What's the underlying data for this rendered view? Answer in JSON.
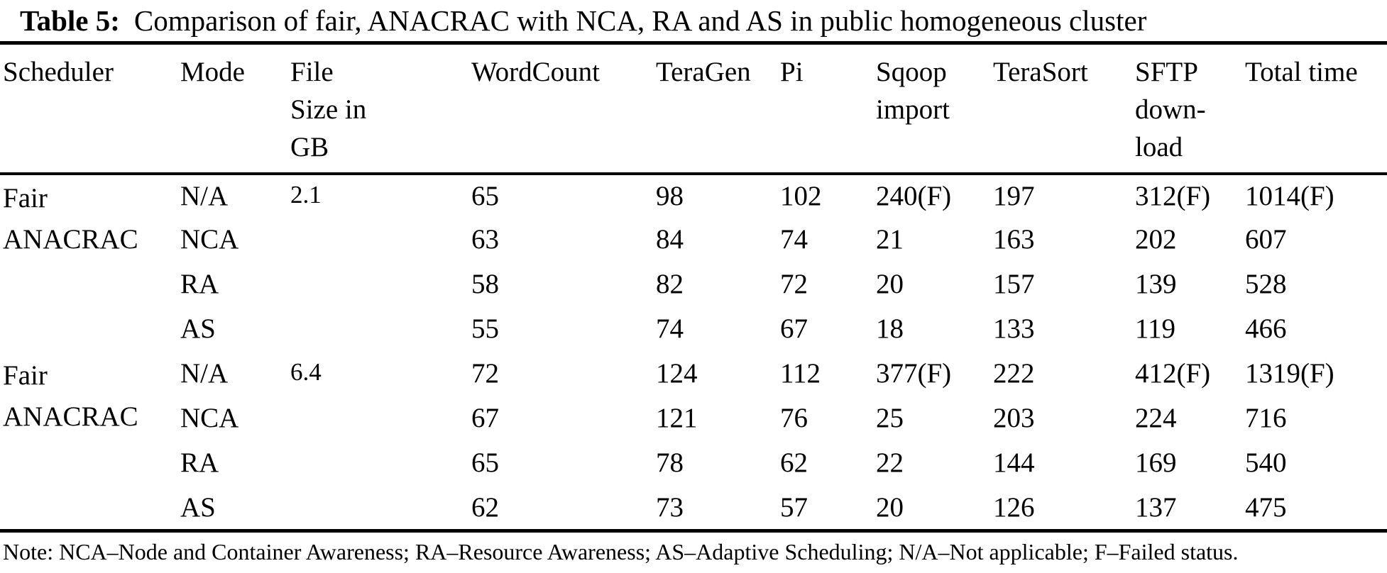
{
  "title": {
    "label": "Table 5:",
    "text": "Comparison of fair, ANACRAC with NCA, RA and AS in public homogeneous cluster"
  },
  "table": {
    "columns": [
      "Scheduler",
      "Mode",
      "File Size in GB",
      "WordCount",
      "TeraGen",
      "Pi",
      "Sqoop import",
      "TeraSort",
      "SFTP down- load",
      "Total time"
    ],
    "groups": [
      {
        "scheduler": "Fair ANACRAC",
        "file_size": "2.1",
        "rows": [
          {
            "mode": "N/A",
            "wordcount": "65",
            "teragen": "98",
            "pi": "102",
            "sqoop_import": "240(F)",
            "terasort": "197",
            "sftp_download": "312(F)",
            "total_time": "1014(F)"
          },
          {
            "mode": "NCA",
            "wordcount": "63",
            "teragen": "84",
            "pi": "74",
            "sqoop_import": "21",
            "terasort": "163",
            "sftp_download": "202",
            "total_time": "607"
          },
          {
            "mode": "RA",
            "wordcount": "58",
            "teragen": "82",
            "pi": "72",
            "sqoop_import": "20",
            "terasort": "157",
            "sftp_download": "139",
            "total_time": "528"
          },
          {
            "mode": "AS",
            "wordcount": "55",
            "teragen": "74",
            "pi": "67",
            "sqoop_import": "18",
            "terasort": "133",
            "sftp_download": "119",
            "total_time": "466"
          }
        ]
      },
      {
        "scheduler": "Fair ANACRAC",
        "file_size": "6.4",
        "rows": [
          {
            "mode": "N/A",
            "wordcount": "72",
            "teragen": "124",
            "pi": "112",
            "sqoop_import": "377(F)",
            "terasort": "222",
            "sftp_download": "412(F)",
            "total_time": "1319(F)"
          },
          {
            "mode": "NCA",
            "wordcount": "67",
            "teragen": "121",
            "pi": "76",
            "sqoop_import": "25",
            "terasort": "203",
            "sftp_download": "224",
            "total_time": "716"
          },
          {
            "mode": "RA",
            "wordcount": "65",
            "teragen": "78",
            "pi": "62",
            "sqoop_import": "22",
            "terasort": "144",
            "sftp_download": "169",
            "total_time": "540"
          },
          {
            "mode": "AS",
            "wordcount": "62",
            "teragen": "73",
            "pi": "57",
            "sqoop_import": "20",
            "terasort": "126",
            "sftp_download": "137",
            "total_time": "475"
          }
        ]
      }
    ]
  },
  "note": "Note: NCA–Node and Container Awareness; RA–Resource Awareness; AS–Adaptive Scheduling; N/A–Not applicable; F–Failed status.",
  "chart_data": {
    "type": "table",
    "title": "Table 5: Comparison of fair, ANACRAC with NCA, RA and AS in public homogeneous cluster",
    "columns": [
      "Scheduler",
      "Mode",
      "File Size in GB",
      "WordCount",
      "TeraGen",
      "Pi",
      "Sqoop import",
      "TeraSort",
      "SFTP download",
      "Total time"
    ],
    "rows": [
      [
        "Fair ANACRAC",
        "N/A",
        "2.1",
        "65",
        "98",
        "102",
        "240(F)",
        "197",
        "312(F)",
        "1014(F)"
      ],
      [
        "",
        "NCA",
        "",
        "63",
        "84",
        "74",
        "21",
        "163",
        "202",
        "607"
      ],
      [
        "",
        "RA",
        "",
        "58",
        "82",
        "72",
        "20",
        "157",
        "139",
        "528"
      ],
      [
        "",
        "AS",
        "",
        "55",
        "74",
        "67",
        "18",
        "133",
        "119",
        "466"
      ],
      [
        "Fair ANACRAC",
        "N/A",
        "6.4",
        "72",
        "124",
        "112",
        "377(F)",
        "222",
        "412(F)",
        "1319(F)"
      ],
      [
        "",
        "NCA",
        "",
        "67",
        "121",
        "76",
        "25",
        "203",
        "224",
        "716"
      ],
      [
        "",
        "RA",
        "",
        "65",
        "78",
        "62",
        "22",
        "144",
        "169",
        "540"
      ],
      [
        "",
        "AS",
        "",
        "62",
        "73",
        "57",
        "20",
        "126",
        "137",
        "475"
      ]
    ]
  }
}
